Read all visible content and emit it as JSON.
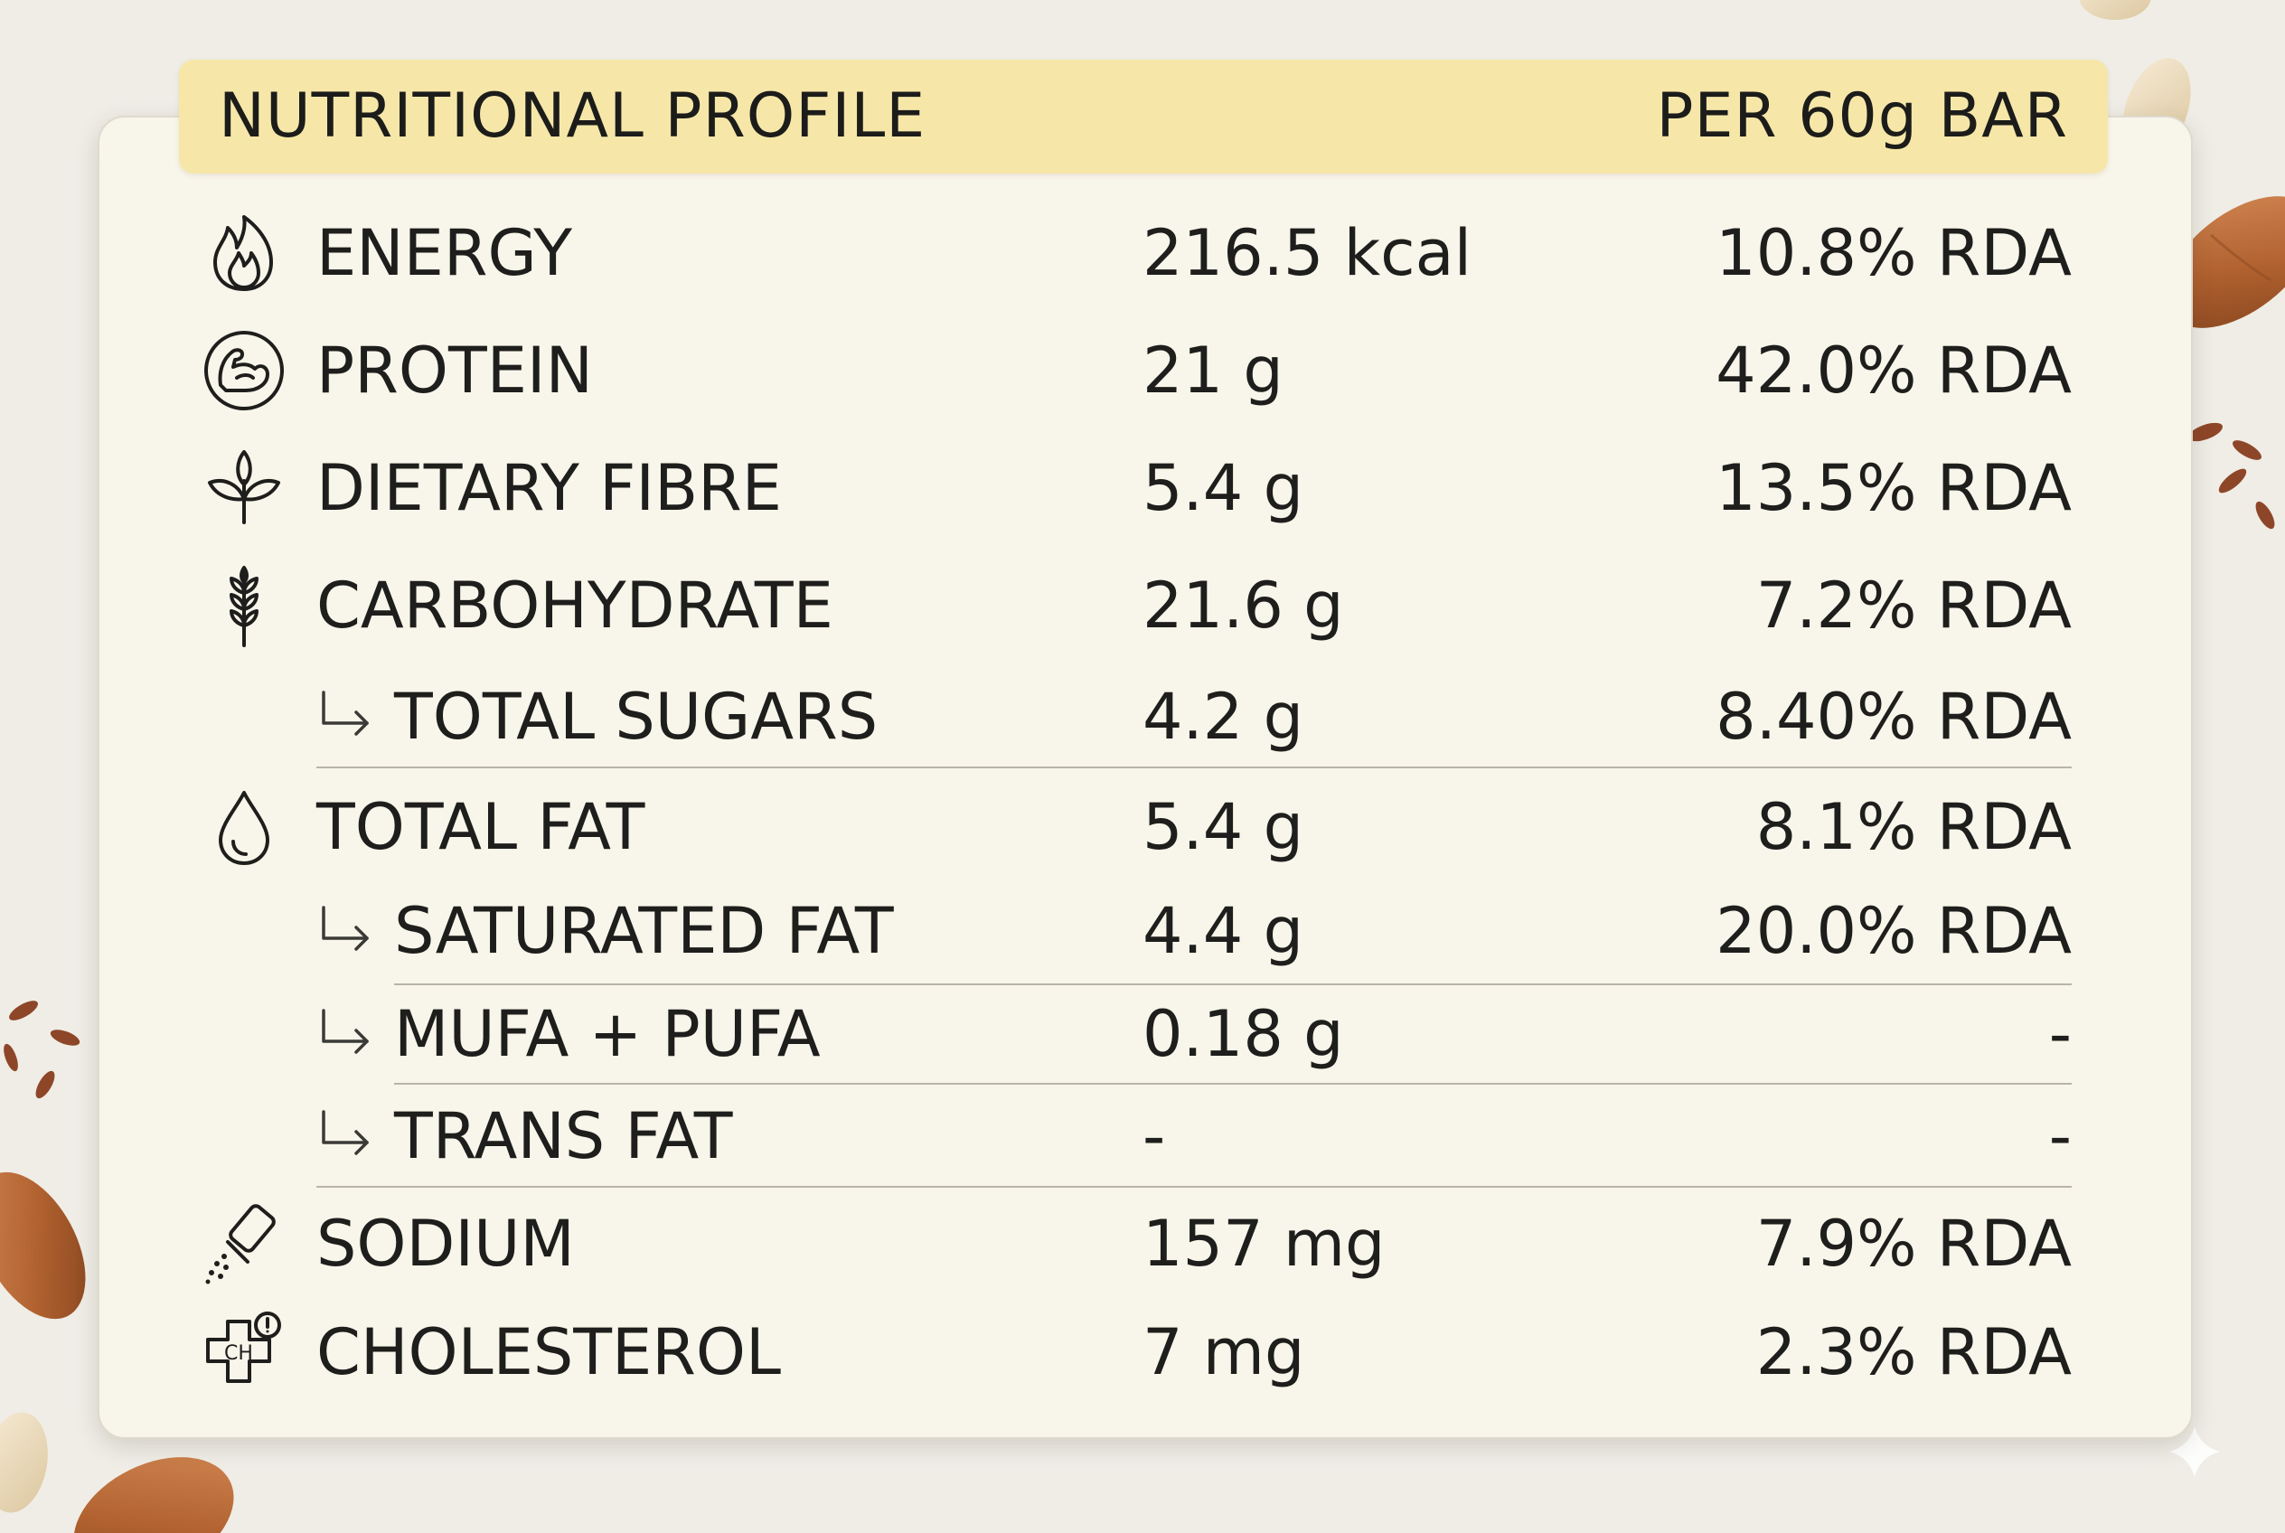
{
  "header": {
    "title": "NUTRITIONAL PROFILE",
    "serving": "PER 60g BAR"
  },
  "rows": [
    {
      "label": "ENERGY",
      "amount": "216.5 kcal",
      "rda": "10.8% RDA",
      "icon": "flame-icon"
    },
    {
      "label": "PROTEIN",
      "amount": "21 g",
      "rda": "42.0% RDA",
      "icon": "muscle-arm-icon"
    },
    {
      "label": "DIETARY FIBRE",
      "amount": "5.4 g",
      "rda": "13.5% RDA",
      "icon": "leaf-icon"
    },
    {
      "label": "CARBOHYDRATE",
      "amount": "21.6 g",
      "rda": "7.2% RDA",
      "icon": "wheat-icon"
    },
    {
      "label": "TOTAL SUGARS",
      "amount": "4.2 g",
      "rda": "8.40% RDA",
      "icon": "sub-arrow-icon"
    },
    {
      "label": "TOTAL FAT",
      "amount": "5.4 g",
      "rda": "8.1% RDA",
      "icon": "drop-icon"
    },
    {
      "label": "SATURATED FAT",
      "amount": "4.4 g",
      "rda": "20.0% RDA",
      "icon": "sub-arrow-icon"
    },
    {
      "label": "MUFA + PUFA",
      "amount": "0.18 g",
      "rda": "-",
      "icon": "sub-arrow-icon"
    },
    {
      "label": "TRANS FAT",
      "amount": "-",
      "rda": "-",
      "icon": "sub-arrow-icon"
    },
    {
      "label": "SODIUM",
      "amount": "157 mg",
      "rda": "7.9% RDA",
      "icon": "salt-shaker-icon"
    },
    {
      "label": "CHOLESTEROL",
      "amount": "7 mg",
      "rda": "2.3% RDA",
      "icon": "cholesterol-icon"
    }
  ],
  "colors": {
    "background": "#efede6",
    "card": "#f8f5ea",
    "header_bar": "#f6e7a9",
    "text": "#1e1e1c",
    "almond": "#b5683a"
  },
  "decor_icons": [
    "almond-icon",
    "flax-seed-icon",
    "sparkle-icon"
  ]
}
